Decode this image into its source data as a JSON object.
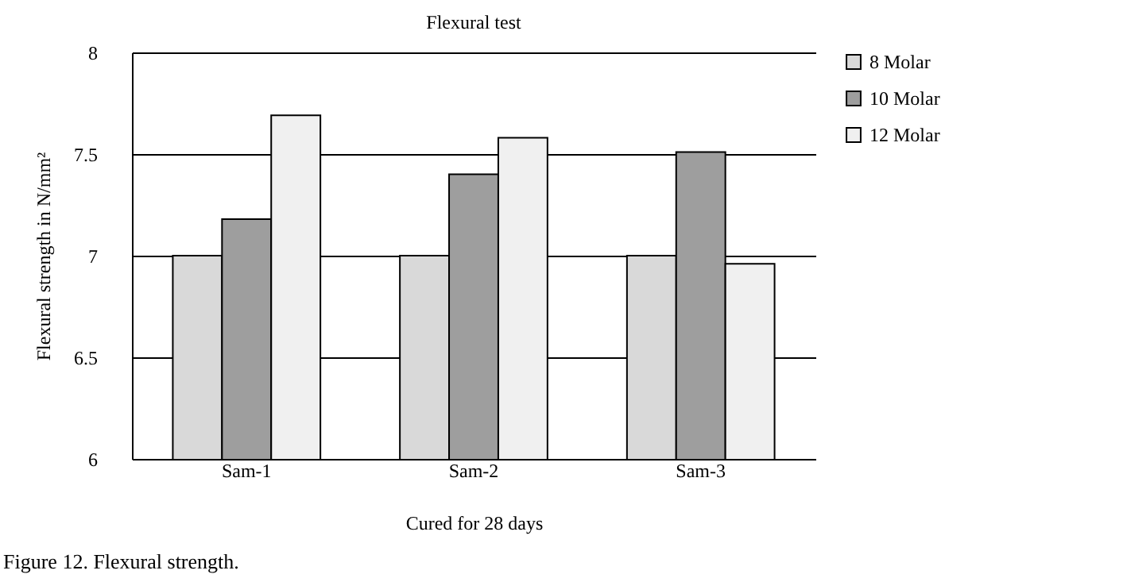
{
  "chart_data": {
    "type": "bar",
    "title": "Flexural test",
    "xlabel": "Cured for 28 days",
    "ylabel": "Flexural strength in N/mm²",
    "categories": [
      "Sam-1",
      "Sam-2",
      "Sam-3"
    ],
    "series": [
      {
        "name": "8 Molar",
        "color": "#d9d9d9",
        "values": [
          7.0,
          7.0,
          7.0
        ]
      },
      {
        "name": "10 Molar",
        "color": "#9e9e9e",
        "values": [
          7.18,
          7.4,
          7.51
        ]
      },
      {
        "name": "12 Molar",
        "color": "#f0f0f0",
        "values": [
          7.69,
          7.58,
          6.96
        ]
      }
    ],
    "ylim": [
      6,
      8
    ],
    "yticks": [
      6,
      6.5,
      7,
      7.5,
      8
    ],
    "grid": "y",
    "legend": "right",
    "annotations": [
      "Figure 12. Flexural strength."
    ]
  }
}
